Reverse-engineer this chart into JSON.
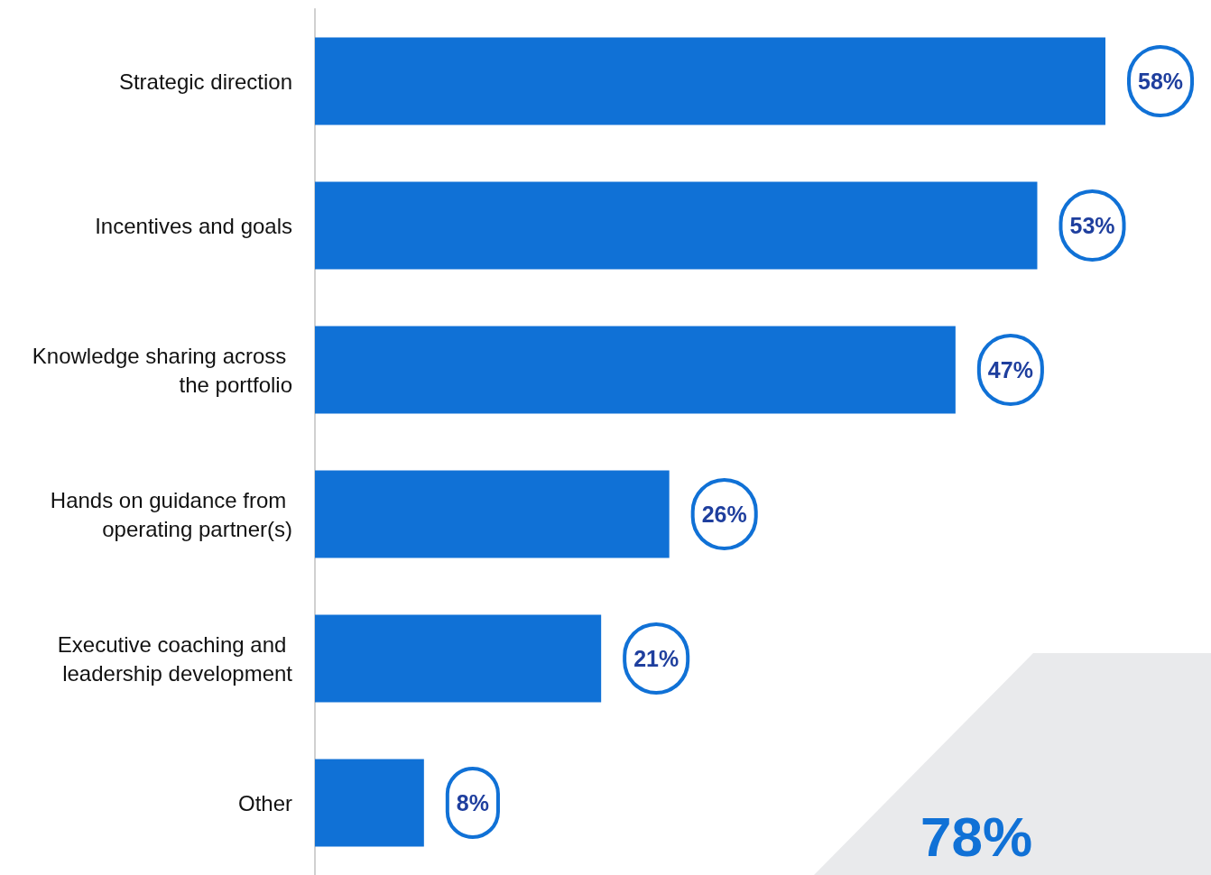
{
  "chart_data": {
    "type": "bar",
    "orientation": "horizontal",
    "categories": [
      "Strategic direction",
      "Incentives and goals",
      "Knowledge sharing across the portfolio",
      "Hands on guidance from operating partner(s)",
      "Executive coaching and leadership development",
      "Other"
    ],
    "values": [
      58,
      53,
      47,
      26,
      21,
      8
    ],
    "value_labels": [
      "58%",
      "53%",
      "47%",
      "26%",
      "21%",
      "8%"
    ],
    "color": "#1071d6",
    "annotations": [
      "78%"
    ]
  }
}
